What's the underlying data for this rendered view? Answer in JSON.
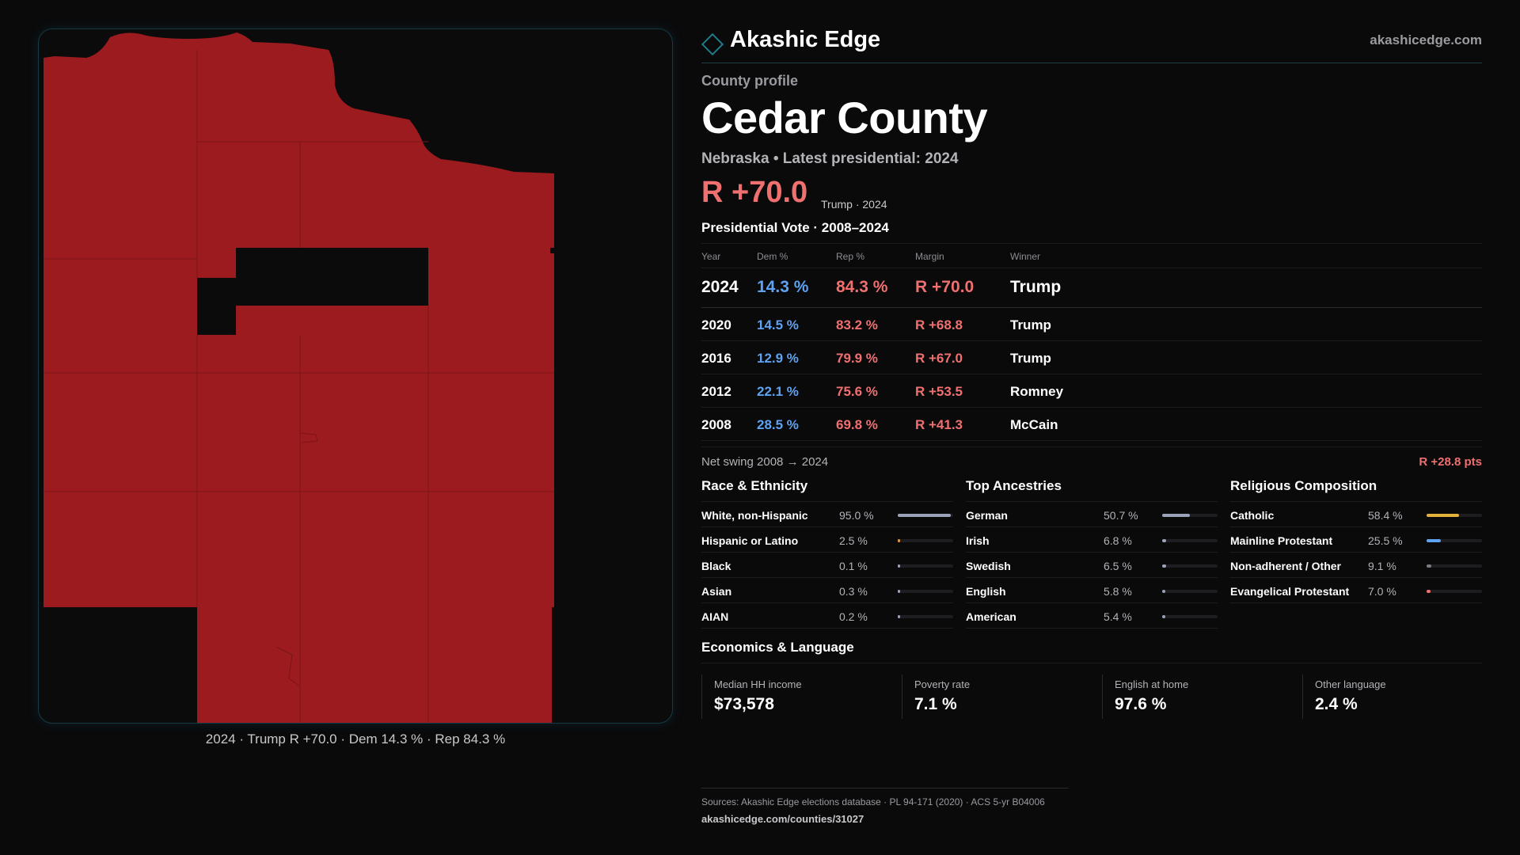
{
  "header": {
    "brand": "Akashic Edge",
    "site": "akashicedge.com"
  },
  "profile": {
    "kicker": "County profile",
    "county": "Cedar County",
    "subline": "Nebraska • Latest presidential: 2024",
    "margin": "R +70.0",
    "margin_note": "Trump · 2024",
    "vote_title": "Presidential Vote · 2008–2024"
  },
  "vote_table": {
    "headers": {
      "year": "Year",
      "dem": "Dem %",
      "rep": "Rep %",
      "margin": "Margin",
      "winner": "Winner"
    },
    "rows": [
      {
        "year": "2024",
        "dem": "14.3 %",
        "rep": "84.3 %",
        "margin": "R +70.0",
        "winner": "Trump"
      },
      {
        "year": "2020",
        "dem": "14.5 %",
        "rep": "83.2 %",
        "margin": "R +68.8",
        "winner": "Trump"
      },
      {
        "year": "2016",
        "dem": "12.9 %",
        "rep": "79.9 %",
        "margin": "R +67.0",
        "winner": "Trump"
      },
      {
        "year": "2012",
        "dem": "22.1 %",
        "rep": "75.6 %",
        "margin": "R +53.5",
        "winner": "Romney"
      },
      {
        "year": "2008",
        "dem": "28.5 %",
        "rep": "69.8 %",
        "margin": "R +41.3",
        "winner": "McCain"
      }
    ]
  },
  "swing": {
    "label": "Net swing 2008 → 2024",
    "value": "R +28.8 pts"
  },
  "race": {
    "title": "Race & Ethnicity",
    "rows": [
      {
        "label": "White, non-Hispanic",
        "value": "95.0 %",
        "pct": 95.0,
        "color": "#9aa3b8"
      },
      {
        "label": "Hispanic or Latino",
        "value": "2.5 %",
        "pct": 2.5,
        "color": "#e8913a"
      },
      {
        "label": "Black",
        "value": "0.1 %",
        "pct": 0.1,
        "color": "#9aa3b8"
      },
      {
        "label": "Asian",
        "value": "0.3 %",
        "pct": 0.3,
        "color": "#9aa3b8"
      },
      {
        "label": "AIAN",
        "value": "0.2 %",
        "pct": 0.2,
        "color": "#9aa3b8"
      }
    ]
  },
  "ancestry": {
    "title": "Top Ancestries",
    "rows": [
      {
        "label": "German",
        "value": "50.7 %",
        "pct": 50.7,
        "color": "#9aa3b8"
      },
      {
        "label": "Irish",
        "value": "6.8 %",
        "pct": 6.8,
        "color": "#9aa3b8"
      },
      {
        "label": "Swedish",
        "value": "6.5 %",
        "pct": 6.5,
        "color": "#9aa3b8"
      },
      {
        "label": "English",
        "value": "5.8 %",
        "pct": 5.8,
        "color": "#9aa3b8"
      },
      {
        "label": "American",
        "value": "5.4 %",
        "pct": 5.4,
        "color": "#9aa3b8"
      }
    ]
  },
  "religion": {
    "title": "Religious Composition",
    "rows": [
      {
        "label": "Catholic",
        "value": "58.4 %",
        "pct": 58.4,
        "color": "#e2b13c"
      },
      {
        "label": "Mainline Protestant",
        "value": "25.5 %",
        "pct": 25.5,
        "color": "#5ea2f0"
      },
      {
        "label": "Non-adherent / Other",
        "value": "9.1 %",
        "pct": 9.1,
        "color": "#7a7a80"
      },
      {
        "label": "Evangelical Protestant",
        "value": "7.0 %",
        "pct": 7.0,
        "color": "#f07070"
      }
    ]
  },
  "economics": {
    "title": "Economics & Language",
    "tiles": [
      {
        "label": "Median HH income",
        "value": "$73,578"
      },
      {
        "label": "Poverty rate",
        "value": "7.1 %"
      },
      {
        "label": "English at home",
        "value": "97.6 %"
      },
      {
        "label": "Other language",
        "value": "2.4 %"
      }
    ]
  },
  "sources": {
    "line1": "Sources: Akashic Edge elections database · PL 94-171 (2020) · ACS 5-yr B04006",
    "line2": "akashicedge.com/counties/31027"
  },
  "map": {
    "caption": "2024 · Trump  R +70.0 · Dem 14.3 % · Rep 84.3 %",
    "fill_color": "#9c1b1f",
    "background_color": "#0b0b0c"
  }
}
